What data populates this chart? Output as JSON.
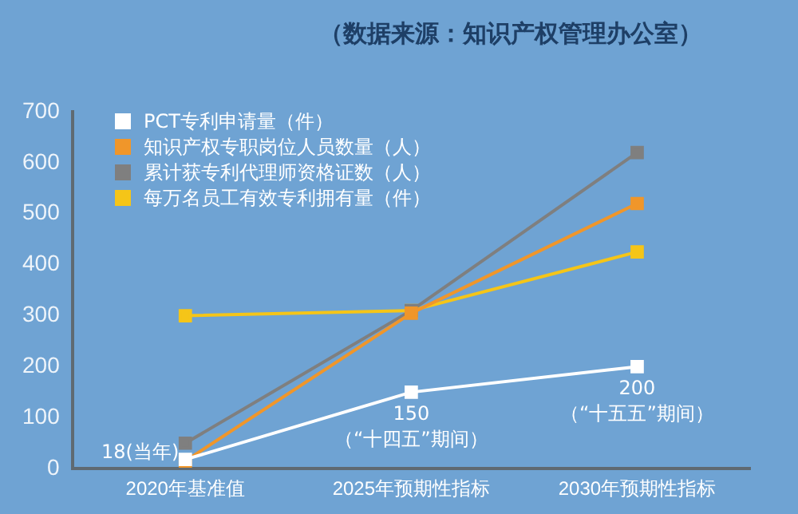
{
  "chart_data": {
    "type": "line",
    "annotations": [
      "（数据来源：知识产权管理办公室）"
    ],
    "categories": [
      "2020年基准值",
      "2025年预期性指标",
      "2030年预期性指标"
    ],
    "series": [
      {
        "name": "PCT专利申请量（件）",
        "color": "#ffffff",
        "values": [
          18,
          150,
          200
        ],
        "value_labels": [
          "18(当年)",
          "150\n（“十四五”期间）",
          "200\n（“十五五”期间）"
        ]
      },
      {
        "name": "知识产权专职岗位人员数量（人）",
        "color": "#f0962a",
        "values": [
          15,
          305,
          520
        ]
      },
      {
        "name": "累计获专利代理师资格证数（人）",
        "color": "#7f7f7f",
        "values": [
          50,
          310,
          620
        ]
      },
      {
        "name": "每万名员工有效专利拥有量（件）",
        "color": "#f5c518",
        "values": [
          300,
          310,
          425
        ]
      }
    ],
    "ylim": [
      0,
      700
    ],
    "yticks": [
      0,
      100,
      200,
      300,
      400,
      500,
      600,
      700
    ],
    "grid": false,
    "legend": "top left",
    "marker": "square"
  }
}
